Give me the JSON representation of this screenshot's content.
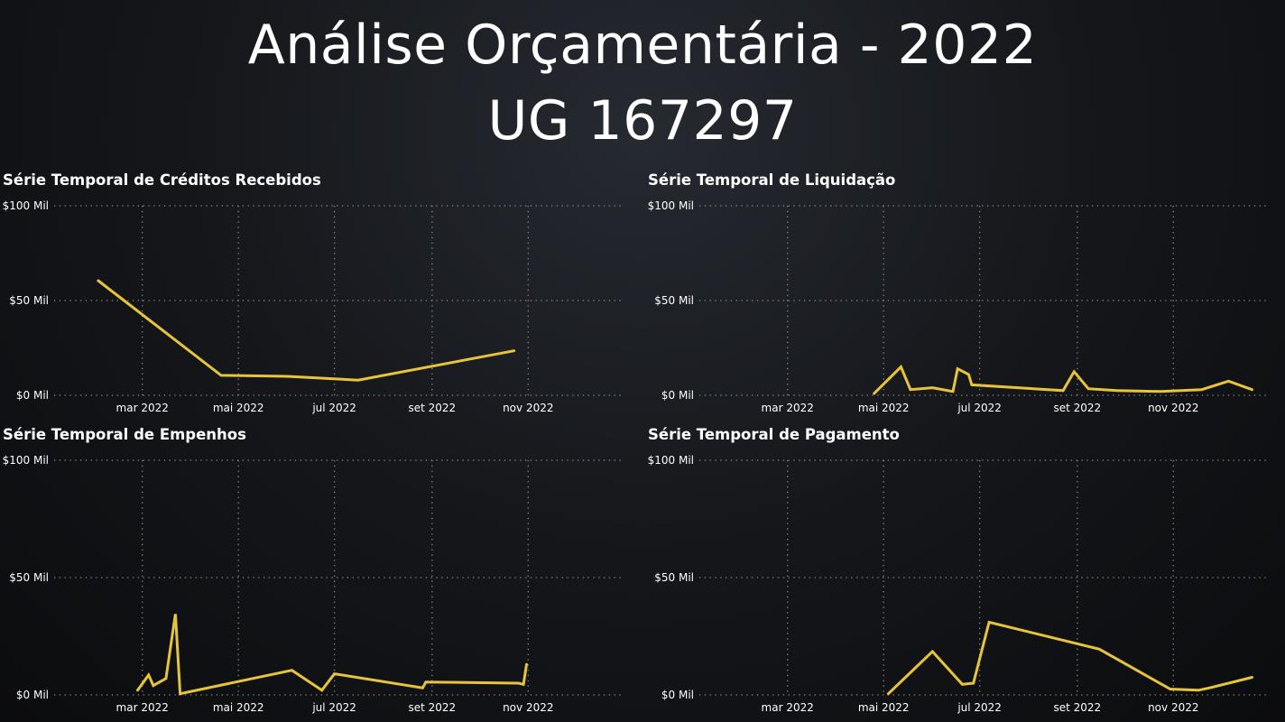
{
  "page": {
    "title_line1": "Análise Orçamentária - 2022",
    "title_line2": "UG 167297"
  },
  "colors": {
    "line": "#e6c53a",
    "grid": "#8a8a8a",
    "text": "#ffffff"
  },
  "chart_data": [
    {
      "type": "line",
      "title": "Série Temporal de Créditos Recebidos",
      "xlabel": "",
      "ylabel": "",
      "x_axis": "date",
      "xlim": [
        "2022-01-04",
        "2022-12-31"
      ],
      "ylim": [
        0,
        100000
      ],
      "yticks": [
        0,
        50000,
        100000
      ],
      "ytick_labels": [
        "$0 Mil",
        "$50 Mil",
        "$100 Mil"
      ],
      "xticks": [
        "2022-03-01",
        "2022-05-01",
        "2022-07-01",
        "2022-09-01",
        "2022-11-01"
      ],
      "xtick_labels": [
        "mar 2022",
        "mai 2022",
        "jul 2022",
        "set 2022",
        "nov 2022"
      ],
      "grid": true,
      "series": [
        {
          "x": [
            "2022-02-01",
            "2022-04-20",
            "2022-06-01",
            "2022-07-16",
            "2022-10-23"
          ],
          "y": [
            60500,
            10500,
            10000,
            8000,
            23500
          ]
        }
      ]
    },
    {
      "type": "line",
      "title": "Série Temporal de Liquidação",
      "xlabel": "",
      "ylabel": "",
      "x_axis": "date",
      "xlim": [
        "2022-01-04",
        "2022-12-31"
      ],
      "ylim": [
        0,
        100000
      ],
      "yticks": [
        0,
        50000,
        100000
      ],
      "ytick_labels": [
        "$0 Mil",
        "$50 Mil",
        "$100 Mil"
      ],
      "xticks": [
        "2022-03-01",
        "2022-05-01",
        "2022-07-01",
        "2022-09-01",
        "2022-11-01"
      ],
      "xtick_labels": [
        "mar 2022",
        "mai 2022",
        "jul 2022",
        "set 2022",
        "nov 2022"
      ],
      "grid": true,
      "series": [
        {
          "x": [
            "2022-04-25",
            "2022-05-12",
            "2022-05-18",
            "2022-06-01",
            "2022-06-14",
            "2022-06-17",
            "2022-06-24",
            "2022-06-26",
            "2022-08-23",
            "2022-08-30",
            "2022-09-08",
            "2022-09-26",
            "2022-10-24",
            "2022-11-19",
            "2022-12-06",
            "2022-12-21"
          ],
          "y": [
            1000,
            15000,
            3000,
            4000,
            2000,
            14000,
            11000,
            5500,
            2500,
            12500,
            3500,
            2500,
            2000,
            3000,
            7500,
            3000
          ]
        }
      ]
    },
    {
      "type": "line",
      "title": "Série Temporal de Empenhos",
      "xlabel": "",
      "ylabel": "",
      "x_axis": "date",
      "xlim": [
        "2022-01-04",
        "2022-12-31"
      ],
      "ylim": [
        0,
        100000
      ],
      "yticks": [
        0,
        50000,
        100000
      ],
      "ytick_labels": [
        "$0 Mil",
        "$50 Mil",
        "$100 Mil"
      ],
      "xticks": [
        "2022-03-01",
        "2022-05-01",
        "2022-07-01",
        "2022-09-01",
        "2022-11-01"
      ],
      "xtick_labels": [
        "mar 2022",
        "mai 2022",
        "jul 2022",
        "set 2022",
        "nov 2022"
      ],
      "grid": true,
      "series": [
        {
          "x": [
            "2022-02-26",
            "2022-03-05",
            "2022-03-08",
            "2022-03-16",
            "2022-03-22",
            "2022-03-25",
            "2022-04-01",
            "2022-06-04",
            "2022-06-23",
            "2022-07-01",
            "2022-08-26",
            "2022-08-28",
            "2022-10-26",
            "2022-10-29",
            "2022-10-31"
          ],
          "y": [
            2000,
            8500,
            4000,
            7000,
            34500,
            500,
            1500,
            10500,
            2000,
            9000,
            3000,
            5500,
            5000,
            4500,
            13000
          ]
        }
      ]
    },
    {
      "type": "line",
      "title": "Série Temporal de Pagamento",
      "xlabel": "",
      "ylabel": "",
      "x_axis": "date",
      "xlim": [
        "2022-01-04",
        "2022-12-31"
      ],
      "ylim": [
        0,
        100000
      ],
      "yticks": [
        0,
        50000,
        100000
      ],
      "ytick_labels": [
        "$0 Mil",
        "$50 Mil",
        "$100 Mil"
      ],
      "xticks": [
        "2022-03-01",
        "2022-05-01",
        "2022-07-01",
        "2022-09-01",
        "2022-11-01"
      ],
      "xtick_labels": [
        "mar 2022",
        "mai 2022",
        "jul 2022",
        "set 2022",
        "nov 2022"
      ],
      "grid": true,
      "series": [
        {
          "x": [
            "2022-05-04",
            "2022-06-01",
            "2022-06-20",
            "2022-06-27",
            "2022-07-07",
            "2022-09-15",
            "2022-10-30",
            "2022-11-17",
            "2022-11-24",
            "2022-12-21"
          ],
          "y": [
            500,
            18500,
            4500,
            5000,
            31000,
            19500,
            2500,
            2000,
            3000,
            7500
          ]
        }
      ]
    }
  ]
}
